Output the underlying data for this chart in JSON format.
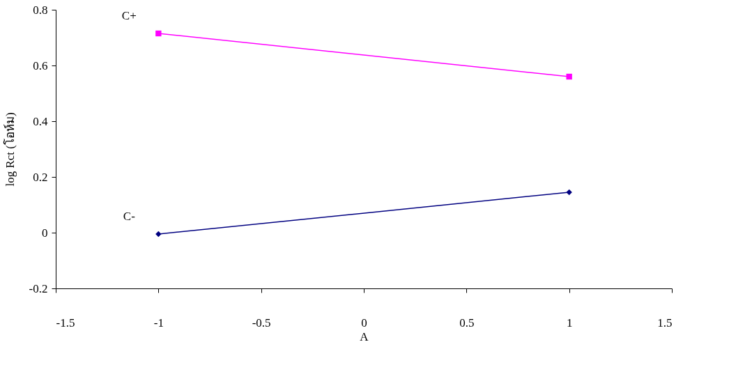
{
  "chart_data": {
    "type": "line",
    "xlabel": "A",
    "ylabel": "log Rct (โอห์ม)",
    "x": [
      -1,
      1
    ],
    "series": [
      {
        "name": "C+",
        "color": "#ff00ff",
        "values": [
          0.715,
          0.56
        ],
        "marker": "square"
      },
      {
        "name": "C-",
        "color": "#000080",
        "values": [
          -0.005,
          0.145
        ],
        "marker": "diamond"
      }
    ],
    "xlim": [
      -1.5,
      1.5
    ],
    "xticks": [
      -1.5,
      -1,
      -0.5,
      0,
      0.5,
      1,
      1.5
    ],
    "ylim": [
      -0.2,
      0.8
    ],
    "yticks": [
      -0.2,
      0,
      0.2,
      0.4,
      0.6,
      0.8
    ],
    "grid": false,
    "legend": false,
    "line_style": "solid"
  }
}
